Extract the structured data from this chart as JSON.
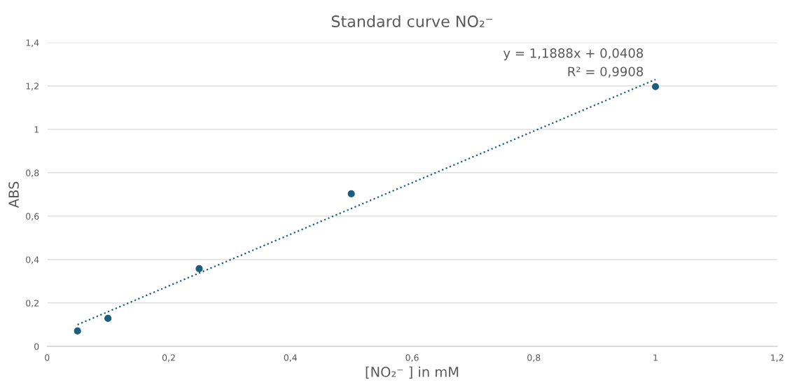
{
  "chart_data": {
    "type": "scatter",
    "title": "Standard curve NO₂⁻",
    "xlabel": "[NO₂⁻ ] in mM",
    "ylabel": "ABS",
    "series": [
      {
        "color": "#1b5e7e",
        "marker": "circle",
        "x": [
          0.05,
          0.1,
          0.25,
          0.5,
          1
        ],
        "values": [
          0.071,
          0.129,
          0.358,
          0.703,
          1.197
        ]
      },
      {
        "type": "line",
        "color": "#1b5e7e",
        "line_style": "dotted",
        "marker": "none",
        "x": [
          0.05,
          1
        ],
        "values": [
          0.1,
          1.23
        ]
      }
    ],
    "annotations": [
      {
        "text": "y = 1,1888x + 0,0408",
        "x": 1,
        "y": 1.23
      },
      {
        "text": "R² = 0,9908",
        "x": 1,
        "y": 1.23
      }
    ],
    "xlim": [
      0,
      1.2
    ],
    "ylim": [
      0,
      1.4
    ],
    "xticks": [
      0,
      {
        "value": 0.2,
        "label": "0,2"
      },
      {
        "value": 0.4,
        "label": "0,4"
      },
      {
        "value": 0.6,
        "label": "0,6"
      },
      {
        "value": 0.8,
        "label": "0,8"
      },
      1,
      {
        "value": 1.2,
        "label": "1,2"
      }
    ],
    "yticks": [
      0,
      {
        "value": 0.2,
        "label": "0,2"
      },
      {
        "value": 0.4,
        "label": "0,4"
      },
      {
        "value": 0.6,
        "label": "0,6"
      },
      {
        "value": 0.8,
        "label": "0,8"
      },
      1,
      {
        "value": 1.2,
        "label": "1,2"
      },
      {
        "value": 1.4,
        "label": "1,4"
      }
    ],
    "grid": "y"
  }
}
